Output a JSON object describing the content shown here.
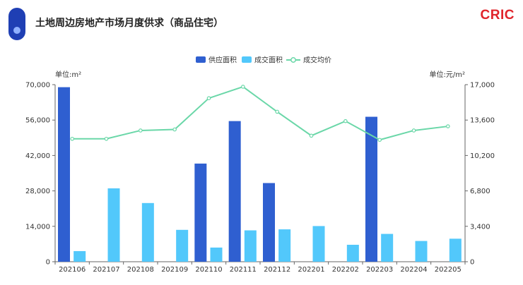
{
  "header": {
    "title": "土地周边房地产市场月度供求（商品住宅）",
    "brand": "CRIC"
  },
  "colors": {
    "supply": "#2f5fd0",
    "deal": "#52c8fb",
    "price": "#6ad7a8",
    "brand": "#e0242b",
    "accent": "#1f3fb4"
  },
  "chart_data": {
    "type": "bar",
    "categories": [
      "202106",
      "202107",
      "202108",
      "202109",
      "202110",
      "202111",
      "202112",
      "202201",
      "202202",
      "202203",
      "202204",
      "202205"
    ],
    "series": [
      {
        "name": "供应面积",
        "type": "bar",
        "axis": "left",
        "values": [
          69000,
          null,
          null,
          null,
          38800,
          55600,
          31100,
          null,
          null,
          57300,
          null,
          null
        ]
      },
      {
        "name": "成交面积",
        "type": "bar",
        "axis": "left",
        "values": [
          4200,
          29000,
          23200,
          12600,
          5600,
          12400,
          12800,
          14100,
          6700,
          11000,
          8200,
          9100
        ]
      },
      {
        "name": "成交均价",
        "type": "line",
        "axis": "right",
        "values": [
          11800,
          11800,
          12600,
          12700,
          15700,
          16800,
          14400,
          12100,
          13500,
          11700,
          12600,
          13000
        ]
      }
    ],
    "left_axis": {
      "unit": "单位:m²",
      "ylim": [
        0,
        70000
      ],
      "ticks": [
        "0",
        "14,000",
        "28,000",
        "42,000",
        "56,000",
        "70,000"
      ]
    },
    "right_axis": {
      "unit": "单位:元/m²",
      "ylim": [
        0,
        17000
      ],
      "ticks": [
        "0",
        "3,400",
        "6,800",
        "10,200",
        "13,600",
        "17,000"
      ]
    },
    "legend_position": "top-center",
    "grid": false
  }
}
